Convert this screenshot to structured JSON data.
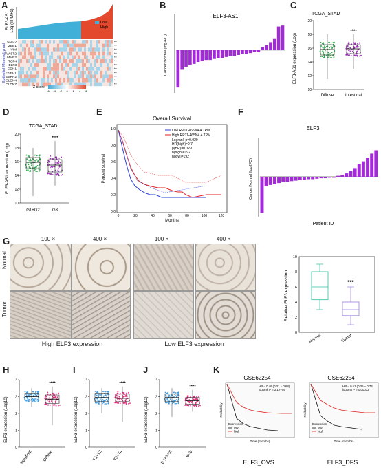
{
  "panels": {
    "A": {
      "label": "A",
      "ylabel_line1": "ELF3-AS1",
      "ylabel_line2": "Log (TPM+1)",
      "legend": [
        "Low",
        "High"
      ],
      "colors": {
        "low": "#40b0d8",
        "high": "#e2492d"
      },
      "group_labels": [
        "Mesenchymal",
        "Epithelial"
      ],
      "genes": [
        "SNAI2",
        "ZEB1",
        "VIM",
        "TWIST2",
        "MMP2",
        "TCF4",
        "ELF3",
        "CDH1",
        "ESRP1",
        "ESRP2",
        "CLDN4",
        "CLDN7"
      ],
      "zscore_label": "Z-score",
      "zscore_ticks": [
        "-6",
        "-4",
        "-2",
        "0",
        "2",
        "4",
        "6"
      ],
      "stars": "***"
    },
    "B": {
      "label": "B",
      "title": "ELF3-AS1",
      "ylabel": "Cancer/Normal (log2FC)"
    },
    "C": {
      "label": "C",
      "title": "TCGA_STAD",
      "ylabel": "ELF3-AS1 expression (Log)",
      "cats": [
        "Diffuse",
        "Intestinal"
      ],
      "sig": "****",
      "yticks": [
        "10",
        "12",
        "14",
        "16",
        "18",
        "20"
      ]
    },
    "D": {
      "label": "D",
      "title": "TCGA_STAD",
      "ylabel": "ELF3-AS1 expression (Log)",
      "cats": [
        "G1+G2",
        "G3"
      ],
      "sig": "****",
      "yticks": [
        "10",
        "12",
        "14",
        "16",
        "18",
        "20"
      ]
    },
    "E": {
      "label": "E",
      "title": "Overall Survival",
      "xlabel": "Months",
      "ylabel": "Percent survival",
      "legend": [
        "Low RP11-465N4.4 TPM",
        "High RP11-465N4.4 TPM"
      ],
      "stats": [
        "Logrank p=0.029",
        "HR(high)=0.7",
        "p(HR)=0.029",
        "n(high)=192",
        "n(low)=192"
      ],
      "xticks": [
        "0",
        "20",
        "40",
        "60",
        "80",
        "100",
        "120"
      ],
      "yticks": [
        "0.0",
        "0.2",
        "0.4",
        "0.6",
        "0.8",
        "1.0"
      ]
    },
    "F": {
      "label": "F",
      "title": "ELF3",
      "ylabel": "Cancer/Normal (log2FC)",
      "xlabel": "Patient ID"
    },
    "G": {
      "label": "G",
      "mags": [
        "100 ×",
        "400 ×",
        "100 ×",
        "400 ×"
      ],
      "rows": [
        "Normal",
        "Tumor"
      ],
      "captions": [
        "High ELF3 expression",
        "Low ELF3 expression"
      ],
      "box_ylabel": "Relative ELF3 expression",
      "box_cats": [
        "Normal",
        "Tumor"
      ],
      "sig": "***",
      "yticks": [
        "0",
        "2",
        "4",
        "6",
        "8",
        "10"
      ]
    },
    "H": {
      "label": "H",
      "ylabel": "ELF3 expression (Log10)",
      "cats": [
        "Intestinal",
        "Diffuse"
      ],
      "sig": "****",
      "yticks": [
        "0",
        "1",
        "2",
        "3",
        "4"
      ]
    },
    "I": {
      "label": "I",
      "ylabel": "ELF3 expression (Log10)",
      "cats": [
        "T1+T2",
        "T3+T4"
      ],
      "sig": "****",
      "yticks": [
        "0",
        "1",
        "2",
        "3",
        "4"
      ]
    },
    "J": {
      "label": "J",
      "ylabel": "ELF3 expression (Log10)",
      "cats": [
        "B-I+II+III",
        "B-IV"
      ],
      "sig": "****",
      "yticks": [
        "0",
        "1",
        "2",
        "3",
        "4"
      ]
    },
    "K": {
      "label": "K",
      "titles": [
        "GSE62254",
        "GSE62254"
      ],
      "stats": [
        [
          "HR = 0.46 (0.31 − 0.68)",
          "logrank P = 2.1e−05"
        ],
        [
          "HR = 0.51 (0.35 − 0.74)",
          "logrank P = 0.00033"
        ]
      ],
      "legend_title": "Expression",
      "legend": [
        "low",
        "high"
      ],
      "xlabel": "Time (months)",
      "ylabel": "Probability",
      "captions": [
        "ELF3_OVS",
        "ELF3_DFS"
      ]
    }
  },
  "chart_data": [
    {
      "type": "bar",
      "title": "ELF3-AS1",
      "ylabel": "Cancer/Normal (log2FC)",
      "ylim": [
        -4,
        3
      ],
      "values": [
        -3.8,
        -2.0,
        -1.7,
        -1.5,
        -1.4,
        -1.2,
        -1.1,
        -1.0,
        -1.0,
        -0.9,
        -0.8,
        -0.8,
        -0.7,
        -0.6,
        -0.6,
        -0.5,
        -0.4,
        -0.4,
        -0.3,
        -0.2,
        -0.2,
        0.3,
        0.5,
        0.8,
        1.2,
        2.4,
        2.5
      ]
    },
    {
      "type": "bar",
      "title": "ELF3",
      "ylabel": "Cancer/Normal (log2FC)",
      "xlabel": "Patient ID",
      "ylim": [
        -8,
        8
      ],
      "values": [
        -7.5,
        -2.0,
        -1.7,
        -1.5,
        -1.3,
        -1.1,
        -1.0,
        -0.9,
        -0.8,
        -0.7,
        -0.6,
        -0.5,
        -0.5,
        -0.4,
        -0.3,
        -0.3,
        -0.2,
        -0.2,
        0.2,
        0.4,
        0.7,
        1.2,
        1.8,
        2.6,
        3.2,
        4.0,
        4.8,
        5.5
      ]
    },
    {
      "type": "box",
      "title": "Relative ELF3 expression",
      "categories": [
        "Normal",
        "Tumor"
      ],
      "stats": [
        {
          "min": 3,
          "q1": 4.3,
          "median": 6.0,
          "q3": 8.0,
          "max": 9.0
        },
        {
          "min": 1,
          "q1": 2.2,
          "median": 3.0,
          "q3": 4.0,
          "max": 6.0
        }
      ],
      "ylim": [
        0,
        10
      ]
    }
  ]
}
